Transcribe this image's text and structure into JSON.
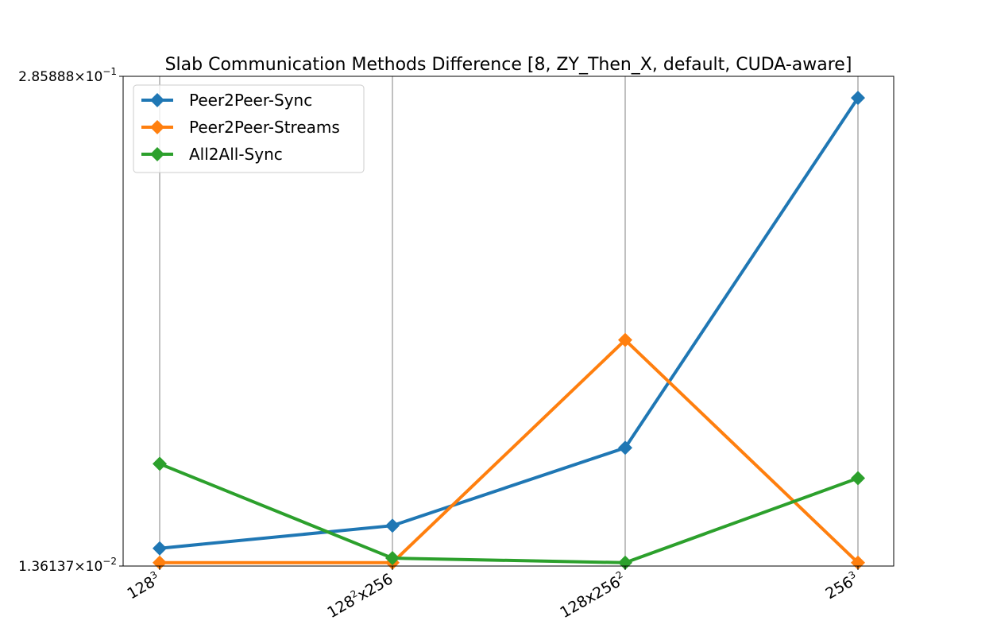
{
  "chart_data": {
    "type": "line",
    "title": "Slab Communication Methods Difference [8, ZY_Then_X, default, CUDA-aware]",
    "xlabel": "",
    "ylabel": "",
    "y_scale": "log",
    "ylim": [
      0.0136137,
      0.285888
    ],
    "y_tick_labels": [
      {
        "value": 0.285888,
        "mantissa": "2.85888",
        "base": "10",
        "exp": "−1"
      },
      {
        "value": 0.0136137,
        "mantissa": "1.36137",
        "base": "10",
        "exp": "−2"
      }
    ],
    "categories": [
      {
        "base": "128",
        "sup": "3",
        "tail": "",
        "sup2": ""
      },
      {
        "base": "128",
        "sup": "2",
        "tail": "x256",
        "sup2": ""
      },
      {
        "base": "128x256",
        "sup": "2",
        "tail": "",
        "sup2": ""
      },
      {
        "base": "256",
        "sup": "3",
        "tail": "",
        "sup2": ""
      }
    ],
    "grid": "vertical",
    "legend_position": "top-left",
    "series": [
      {
        "name": "Peer2Peer-Sync",
        "color": "#1f77b4",
        "values": [
          0.0152,
          0.0175,
          0.0284,
          0.25
        ]
      },
      {
        "name": "Peer2Peer-Streams",
        "color": "#ff7f0e",
        "values": [
          0.0139,
          0.0139,
          0.0555,
          0.0139
        ]
      },
      {
        "name": "All2All-Sync",
        "color": "#2ca02c",
        "values": [
          0.0257,
          0.0143,
          0.0139,
          0.0235
        ]
      }
    ]
  }
}
